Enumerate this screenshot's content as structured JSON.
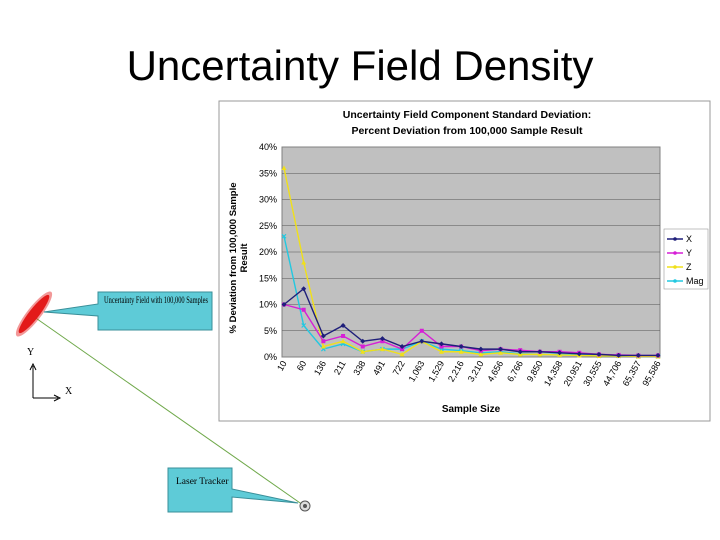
{
  "slide": {
    "title": "Uncertainty Field Density"
  },
  "diagram": {
    "callout_field": "Uncertainty Field with 100,000 Samples",
    "callout_tracker": "Laser Tracker",
    "axis_y": "Y",
    "axis_x": "X"
  },
  "chart_data": {
    "type": "line",
    "title": "Uncertainty Field Component Standard Deviation: Percent Deviation from 100,000 Sample Result",
    "title_lines": [
      "Uncertainty Field Component Standard Deviation:",
      "Percent Deviation from 100,000 Sample Result"
    ],
    "xlabel": "Sample Size",
    "ylabel": "% Deviation from 100,000 Sample Result",
    "ylabel_lines": [
      "% Deviation from 100,000 Sample",
      "Result"
    ],
    "ylim": [
      0,
      40
    ],
    "yticks": [
      "0%",
      "5%",
      "10%",
      "15%",
      "20%",
      "25%",
      "30%",
      "35%",
      "40%"
    ],
    "grid": true,
    "legend_position": "right",
    "categories": [
      "10",
      "60",
      "136",
      "211",
      "338",
      "491",
      "722",
      "1,063",
      "1,529",
      "2,216",
      "3,210",
      "4,656",
      "6,766",
      "9,850",
      "14,358",
      "20,951",
      "30,555",
      "44,706",
      "65,357",
      "95,586"
    ],
    "series": [
      {
        "name": "X",
        "color": "#1f1f7a",
        "values": [
          10,
          13,
          4,
          6,
          3,
          3.5,
          2,
          3,
          2.5,
          2,
          1.5,
          1.5,
          1,
          1,
          0.8,
          0.6,
          0.5,
          0.3,
          0.3,
          0.3
        ]
      },
      {
        "name": "Y",
        "color": "#d61fd6",
        "values": [
          10,
          9,
          3,
          4,
          2,
          3,
          1.5,
          5,
          2,
          2,
          1.2,
          1.5,
          1.3,
          1,
          1,
          0.8,
          0.5,
          0.4,
          0.3,
          0.3
        ]
      },
      {
        "name": "Z",
        "color": "#f0e01a",
        "values": [
          36,
          18,
          2,
          3,
          1,
          1.5,
          0.5,
          3,
          1,
          1,
          0.5,
          0.8,
          0.5,
          0.5,
          0.4,
          0.3,
          0.2,
          0.2,
          0.1,
          0.1
        ]
      },
      {
        "name": "Mag",
        "color": "#22c8e0",
        "values": [
          23,
          6,
          1.5,
          2.5,
          1,
          1.5,
          1.5,
          3,
          1.5,
          1.2,
          0.8,
          1,
          0.6,
          0.5,
          0.5,
          0.4,
          0.2,
          0.2,
          0.1,
          0.1
        ]
      }
    ]
  }
}
